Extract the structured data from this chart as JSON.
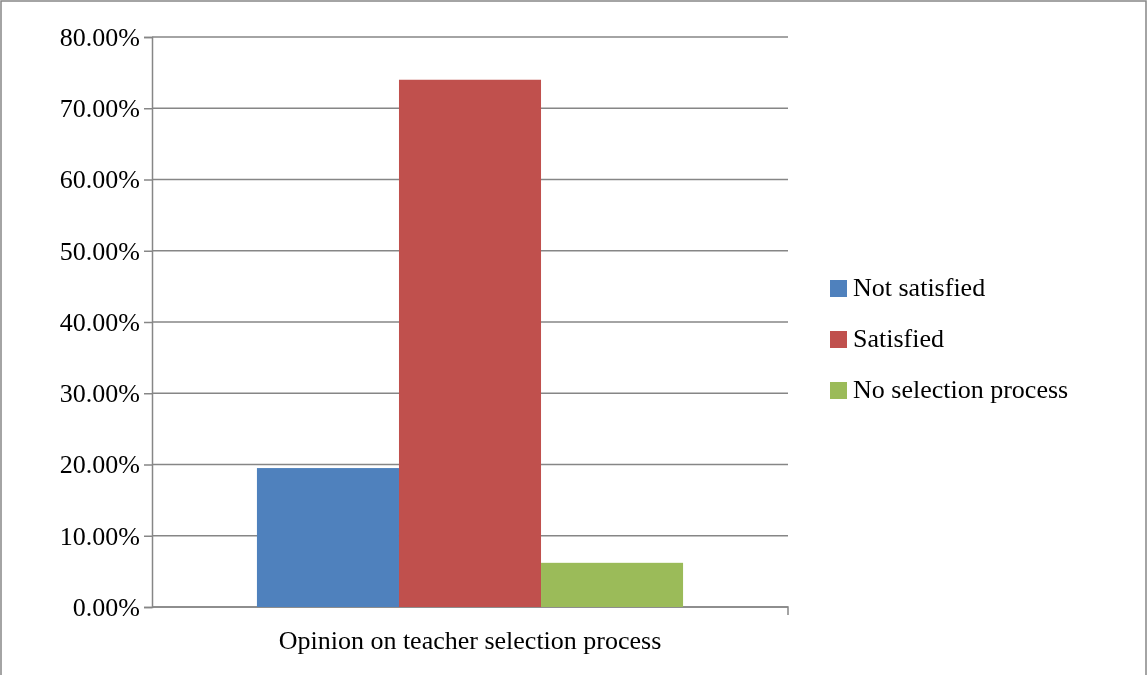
{
  "chart_data": {
    "type": "bar",
    "categories": [
      "Opinion on teacher selection process"
    ],
    "series": [
      {
        "name": "Not satisfied",
        "color": "#4f81bd",
        "values": [
          19.5
        ]
      },
      {
        "name": "Satisfied",
        "color": "#c0504d",
        "values": [
          74.0
        ]
      },
      {
        "name": "No selection process",
        "color": "#9bbb59",
        "values": [
          6.2
        ]
      }
    ],
    "ylim": [
      0,
      80
    ],
    "yticks": [
      {
        "value": 0,
        "label": "0.00%"
      },
      {
        "value": 10,
        "label": "10.00%"
      },
      {
        "value": 20,
        "label": "20.00%"
      },
      {
        "value": 30,
        "label": "30.00%"
      },
      {
        "value": 40,
        "label": "40.00%"
      },
      {
        "value": 50,
        "label": "50.00%"
      },
      {
        "value": 60,
        "label": "60.00%"
      },
      {
        "value": 70,
        "label": "70.00%"
      },
      {
        "value": 80,
        "label": "80.00%"
      }
    ],
    "grid": "y",
    "legend": "right"
  }
}
